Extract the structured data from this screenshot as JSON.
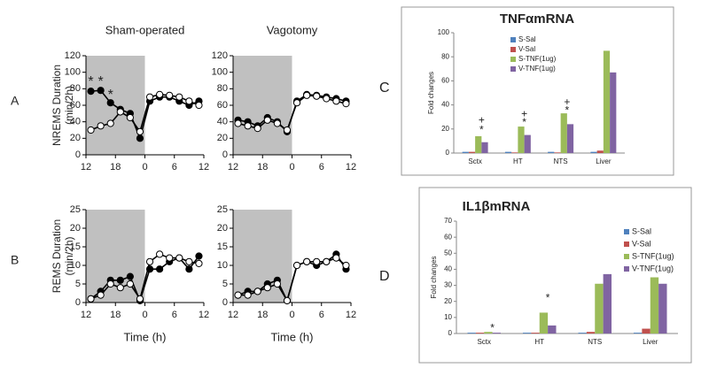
{
  "panels": [
    "A",
    "B",
    "C",
    "D"
  ],
  "chart_data": [
    {
      "type": "line",
      "title": "Sham-operated",
      "ylabel": [
        "NREMS Duration",
        "(min/2h)"
      ],
      "x": [
        -11,
        -9,
        -7,
        -5,
        -3,
        -1,
        1,
        3,
        5,
        7,
        9,
        11
      ],
      "xlim": [
        -12,
        12
      ],
      "xticks": [
        {
          "value": -12,
          "label": "12"
        },
        {
          "value": -6,
          "label": "18"
        },
        0,
        6,
        {
          "value": 12,
          "label": "12"
        }
      ],
      "ylim": [
        0,
        120
      ],
      "yticks": [
        0,
        20,
        40,
        60,
        80,
        100,
        120
      ],
      "dark_period": [
        -12,
        0
      ],
      "series": [
        {
          "color": "#000000",
          "values": [
            77,
            78,
            63,
            55,
            50,
            20,
            65,
            70,
            70,
            65,
            60,
            65
          ]
        },
        {
          "color": "#ffffff",
          "values": [
            30,
            35,
            38,
            52,
            45,
            28,
            70,
            73,
            72,
            70,
            65,
            60
          ]
        }
      ],
      "annotations": [
        {
          "text": "*",
          "x": -11,
          "y": 88
        },
        {
          "text": "*",
          "x": -9,
          "y": 88
        },
        {
          "text": "*",
          "x": -7,
          "y": 72
        }
      ]
    },
    {
      "type": "line",
      "title": "Vagotomy",
      "x": [
        -11,
        -9,
        -7,
        -5,
        -3,
        -1,
        1,
        3,
        5,
        7,
        9,
        11
      ],
      "xlim": [
        -12,
        12
      ],
      "xticks": [
        {
          "value": -12,
          "label": "12"
        },
        {
          "value": -6,
          "label": "18"
        },
        0,
        6,
        {
          "value": 12,
          "label": "12"
        }
      ],
      "ylim": [
        0,
        120
      ],
      "yticks": [
        0,
        20,
        40,
        60,
        80,
        100,
        120
      ],
      "dark_period": [
        -12,
        0
      ],
      "series": [
        {
          "color": "#000000",
          "values": [
            42,
            40,
            35,
            45,
            40,
            28,
            65,
            73,
            72,
            70,
            68,
            65
          ]
        },
        {
          "color": "#ffffff",
          "values": [
            38,
            35,
            32,
            42,
            38,
            30,
            63,
            72,
            71,
            68,
            65,
            62
          ]
        }
      ]
    },
    {
      "type": "line",
      "ylabel": [
        "REMS Duration",
        "(min/2h)"
      ],
      "xlabel": "Time (h)",
      "x": [
        -11,
        -9,
        -7,
        -5,
        -3,
        -1,
        1,
        3,
        5,
        7,
        9,
        11
      ],
      "xlim": [
        -12,
        12
      ],
      "xticks": [
        {
          "value": -12,
          "label": "12"
        },
        {
          "value": -6,
          "label": "18"
        },
        0,
        6,
        {
          "value": 12,
          "label": "12"
        }
      ],
      "ylim": [
        0,
        25
      ],
      "yticks": [
        0,
        5,
        10,
        15,
        20,
        25
      ],
      "dark_period": [
        -12,
        0
      ],
      "series": [
        {
          "color": "#000000",
          "values": [
            1,
            3,
            6,
            6,
            7,
            0.5,
            9,
            9,
            11,
            12,
            9,
            12.5
          ]
        },
        {
          "color": "#ffffff",
          "values": [
            1,
            2,
            5,
            4,
            5,
            1,
            11,
            13,
            12,
            12,
            11,
            10.5
          ]
        }
      ]
    },
    {
      "type": "line",
      "xlabel": "Time (h)",
      "x": [
        -11,
        -9,
        -7,
        -5,
        -3,
        -1,
        1,
        3,
        5,
        7,
        9,
        11
      ],
      "xlim": [
        -12,
        12
      ],
      "xticks": [
        {
          "value": -12,
          "label": "12"
        },
        {
          "value": -6,
          "label": "18"
        },
        0,
        6,
        {
          "value": 12,
          "label": "12"
        }
      ],
      "ylim": [
        0,
        25
      ],
      "yticks": [
        0,
        5,
        10,
        15,
        20,
        25
      ],
      "dark_period": [
        -12,
        0
      ],
      "series": [
        {
          "color": "#000000",
          "values": [
            2,
            3,
            3,
            5,
            6,
            0.5,
            10,
            11,
            10,
            11,
            13,
            9
          ]
        },
        {
          "color": "#ffffff",
          "values": [
            2,
            2,
            3,
            4,
            5,
            0.5,
            10,
            11,
            11,
            11,
            12,
            10
          ]
        }
      ]
    },
    {
      "type": "bar",
      "title": "TNFαmRNA",
      "ylabel": "Fold changes",
      "categories": [
        "Sctx",
        "HT",
        "NTS",
        "Liver"
      ],
      "ylim": [
        0,
        100
      ],
      "yticks": [
        0,
        20,
        40,
        60,
        80,
        100
      ],
      "series": [
        {
          "name": "S-Sal",
          "color": "#4f81bd",
          "values": [
            1,
            1,
            1,
            1
          ]
        },
        {
          "name": "V-Sal",
          "color": "#c0504d",
          "values": [
            1,
            0.5,
            0.5,
            2
          ]
        },
        {
          "name": "S-TNF(1ug)",
          "color": "#9bbb59",
          "values": [
            14,
            22,
            33,
            85
          ]
        },
        {
          "name": "V-TNF(1ug)",
          "color": "#8064a2",
          "values": [
            9,
            15,
            24,
            67
          ]
        }
      ],
      "annotations": [
        {
          "text": "+",
          "category": 0,
          "y": 27
        },
        {
          "text": "*",
          "category": 0,
          "y": 19
        },
        {
          "text": "+",
          "category": 1,
          "y": 32
        },
        {
          "text": "*",
          "category": 1,
          "y": 25
        },
        {
          "text": "+",
          "category": 2,
          "y": 42
        },
        {
          "text": "*",
          "category": 2,
          "y": 35
        }
      ]
    },
    {
      "type": "bar",
      "title": "IL1βmRNA",
      "ylabel": "Fold changes",
      "categories": [
        "Sctx",
        "HT",
        "NTS",
        "Liver"
      ],
      "ylim": [
        0,
        70
      ],
      "yticks": [
        0,
        10,
        20,
        30,
        40,
        50,
        60,
        70
      ],
      "series": [
        {
          "name": "S-Sal",
          "color": "#4f81bd",
          "values": [
            0.5,
            0.5,
            0.5,
            0.5
          ]
        },
        {
          "name": "V-Sal",
          "color": "#c0504d",
          "values": [
            0.5,
            0.5,
            1,
            3
          ]
        },
        {
          "name": "S-TNF(1ug)",
          "color": "#9bbb59",
          "values": [
            1,
            13,
            31,
            35
          ]
        },
        {
          "name": "V-TNF(1ug)",
          "color": "#8064a2",
          "values": [
            0.5,
            5,
            37,
            31
          ]
        }
      ],
      "annotations": [
        {
          "text": "*",
          "category": 0,
          "y": 3
        },
        {
          "text": "*",
          "category": 1,
          "y": 22
        }
      ]
    }
  ]
}
